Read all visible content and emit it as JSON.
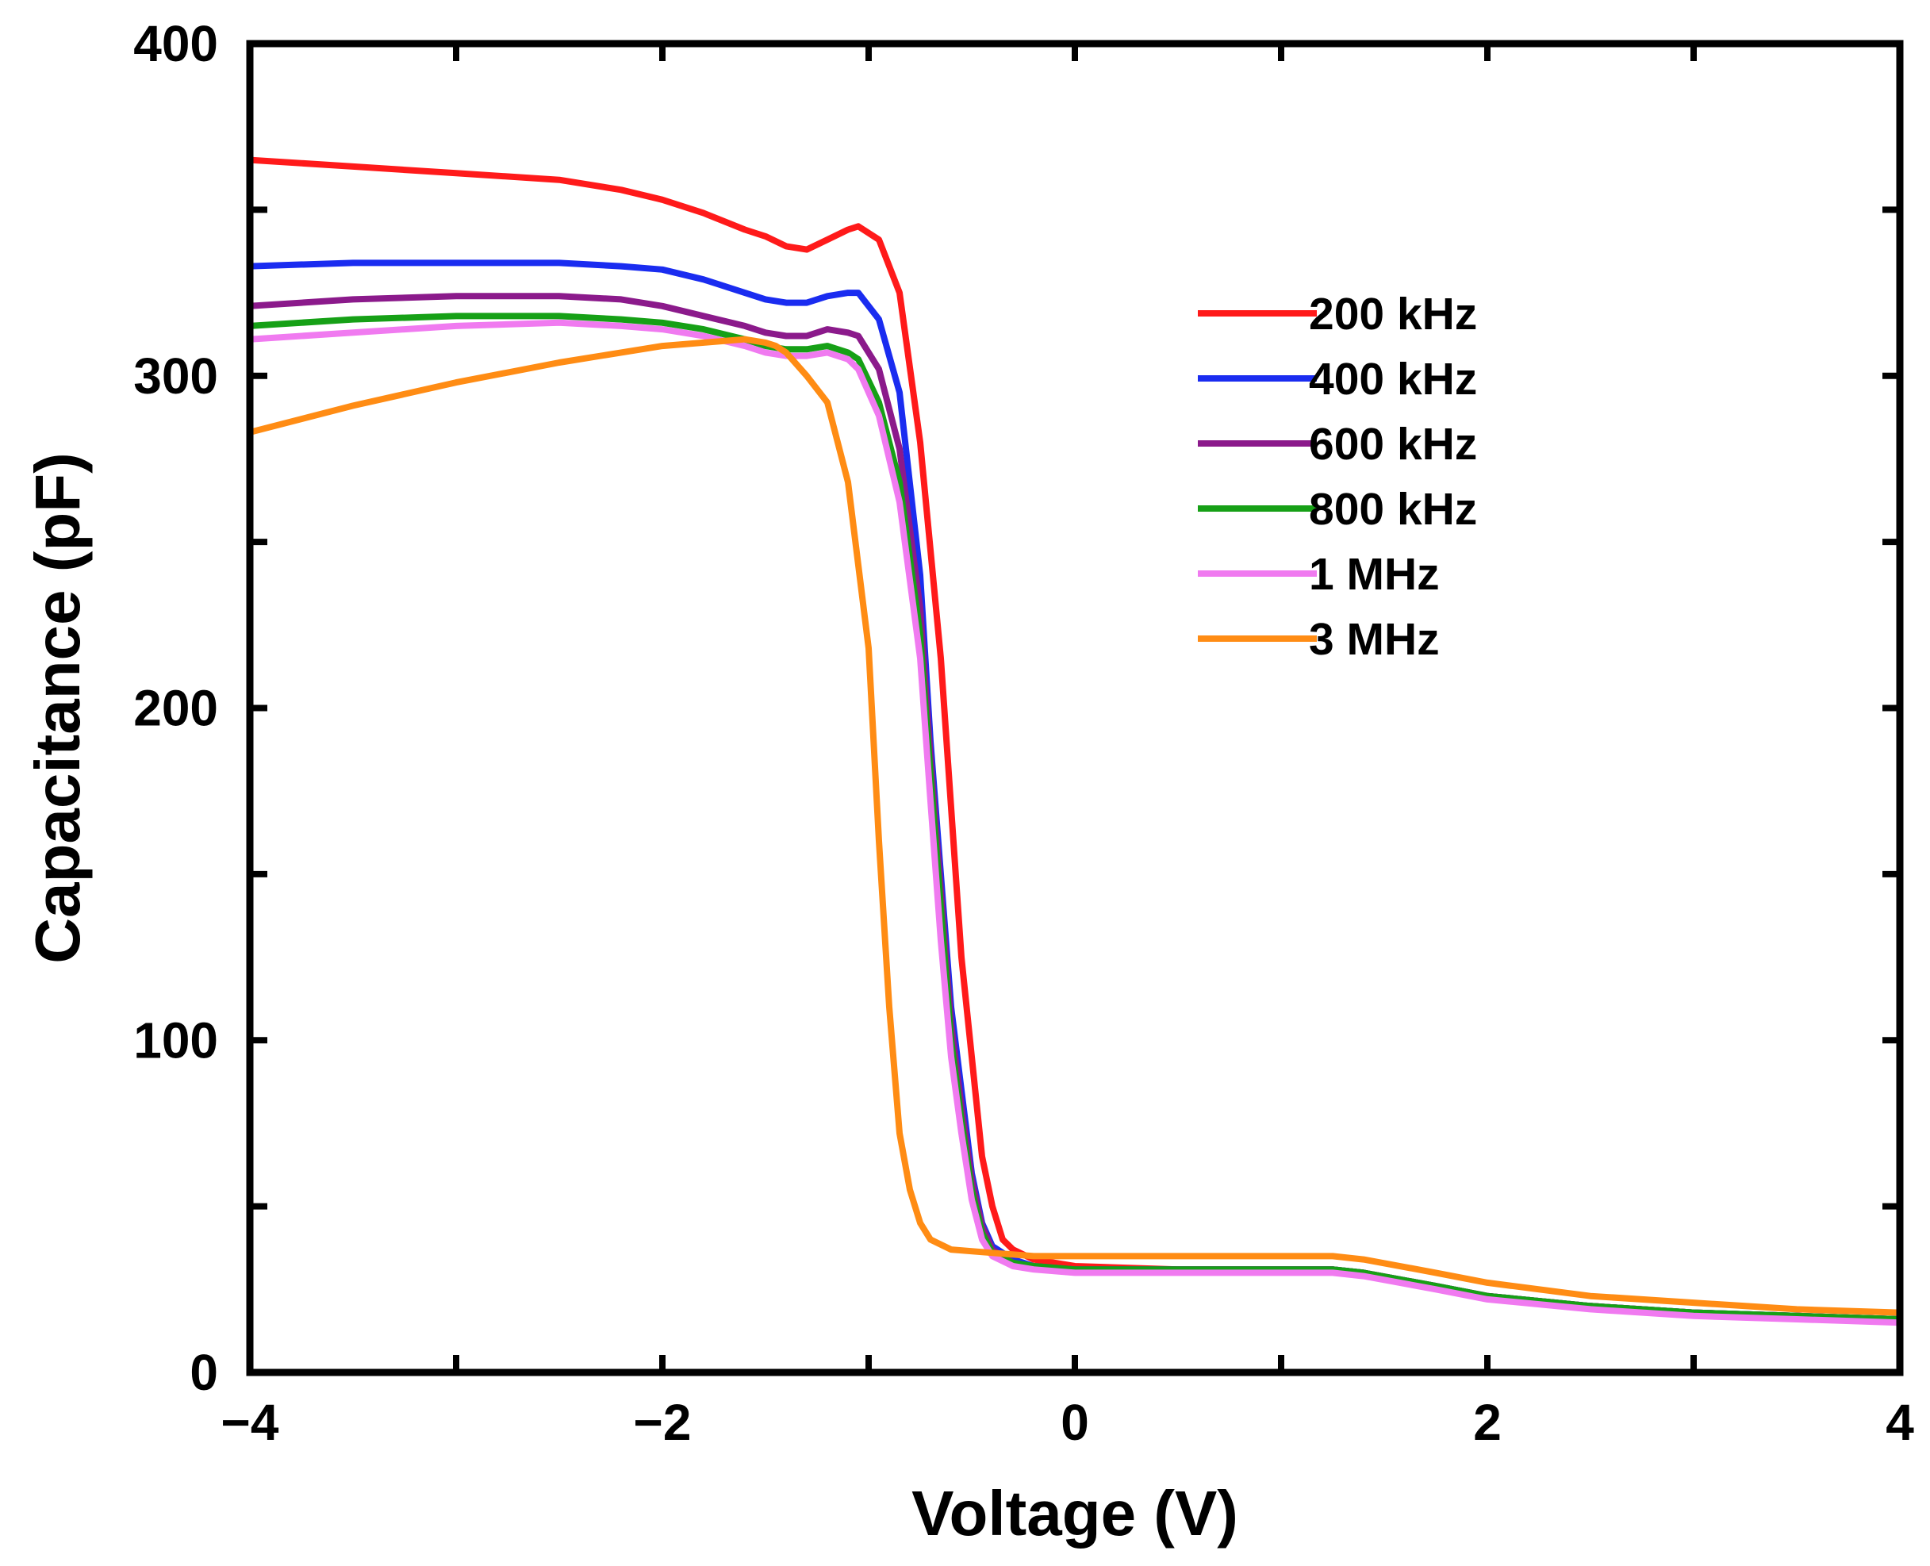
{
  "chart_data": {
    "type": "line",
    "title": "",
    "xlabel": "Voltage (V)",
    "ylabel": "Capacitance (pF)",
    "xlim": [
      -4,
      4
    ],
    "ylim": [
      0,
      400
    ],
    "xticks": [
      -4,
      -2,
      0,
      2,
      4
    ],
    "xtick_labels": [
      "−4",
      "−2",
      "0",
      "2",
      "4"
    ],
    "yticks": [
      0,
      100,
      200,
      300,
      400
    ],
    "ytick_labels": [
      "0",
      "100",
      "200",
      "300",
      "400"
    ],
    "grid": false,
    "legend_position": "upper-right",
    "series": [
      {
        "name": "200 kHz",
        "color": "#ff1a1a",
        "points": [
          [
            -4.0,
            365
          ],
          [
            -3.5,
            363
          ],
          [
            -3.0,
            361
          ],
          [
            -2.5,
            359
          ],
          [
            -2.2,
            356
          ],
          [
            -2.0,
            353
          ],
          [
            -1.8,
            349
          ],
          [
            -1.6,
            344
          ],
          [
            -1.5,
            342
          ],
          [
            -1.4,
            339
          ],
          [
            -1.3,
            338
          ],
          [
            -1.2,
            341
          ],
          [
            -1.1,
            344
          ],
          [
            -1.05,
            345
          ],
          [
            -0.95,
            341
          ],
          [
            -0.85,
            325
          ],
          [
            -0.75,
            280
          ],
          [
            -0.65,
            215
          ],
          [
            -0.6,
            170
          ],
          [
            -0.55,
            125
          ],
          [
            -0.5,
            95
          ],
          [
            -0.45,
            65
          ],
          [
            -0.4,
            50
          ],
          [
            -0.35,
            40
          ],
          [
            -0.3,
            37
          ],
          [
            -0.2,
            34
          ],
          [
            0.0,
            32
          ],
          [
            0.5,
            31
          ],
          [
            1.0,
            31
          ],
          [
            1.25,
            31
          ],
          [
            1.4,
            30
          ],
          [
            1.75,
            26
          ],
          [
            2.0,
            23
          ],
          [
            2.5,
            20
          ],
          [
            3.0,
            18
          ],
          [
            3.5,
            17
          ],
          [
            4.0,
            16
          ]
        ]
      },
      {
        "name": "400 kHz",
        "color": "#1a2cf0",
        "points": [
          [
            -4.0,
            333
          ],
          [
            -3.5,
            334
          ],
          [
            -3.0,
            334
          ],
          [
            -2.5,
            334
          ],
          [
            -2.2,
            333
          ],
          [
            -2.0,
            332
          ],
          [
            -1.8,
            329
          ],
          [
            -1.6,
            325
          ],
          [
            -1.5,
            323
          ],
          [
            -1.4,
            322
          ],
          [
            -1.3,
            322
          ],
          [
            -1.2,
            324
          ],
          [
            -1.1,
            325
          ],
          [
            -1.05,
            325
          ],
          [
            -0.95,
            317
          ],
          [
            -0.85,
            295
          ],
          [
            -0.75,
            240
          ],
          [
            -0.7,
            190
          ],
          [
            -0.65,
            150
          ],
          [
            -0.6,
            110
          ],
          [
            -0.55,
            85
          ],
          [
            -0.5,
            60
          ],
          [
            -0.45,
            45
          ],
          [
            -0.4,
            38
          ],
          [
            -0.3,
            34
          ],
          [
            -0.2,
            32
          ],
          [
            0.0,
            31
          ],
          [
            0.5,
            31
          ],
          [
            1.0,
            31
          ],
          [
            1.25,
            31
          ],
          [
            1.4,
            30
          ],
          [
            1.75,
            26
          ],
          [
            2.0,
            23
          ],
          [
            2.5,
            20
          ],
          [
            3.0,
            18
          ],
          [
            3.5,
            17
          ],
          [
            4.0,
            16
          ]
        ]
      },
      {
        "name": "600 kHz",
        "color": "#8b1a8b",
        "points": [
          [
            -4.0,
            321
          ],
          [
            -3.5,
            323
          ],
          [
            -3.0,
            324
          ],
          [
            -2.5,
            324
          ],
          [
            -2.2,
            323
          ],
          [
            -2.0,
            321
          ],
          [
            -1.8,
            318
          ],
          [
            -1.6,
            315
          ],
          [
            -1.5,
            313
          ],
          [
            -1.4,
            312
          ],
          [
            -1.3,
            312
          ],
          [
            -1.2,
            314
          ],
          [
            -1.1,
            313
          ],
          [
            -1.05,
            312
          ],
          [
            -0.95,
            302
          ],
          [
            -0.85,
            278
          ],
          [
            -0.75,
            230
          ],
          [
            -0.7,
            185
          ],
          [
            -0.65,
            145
          ],
          [
            -0.6,
            105
          ],
          [
            -0.55,
            80
          ],
          [
            -0.5,
            58
          ],
          [
            -0.45,
            44
          ],
          [
            -0.4,
            37
          ],
          [
            -0.3,
            33
          ],
          [
            -0.2,
            32
          ],
          [
            0.0,
            31
          ],
          [
            0.5,
            31
          ],
          [
            1.0,
            31
          ],
          [
            1.25,
            31
          ],
          [
            1.4,
            30
          ],
          [
            1.75,
            26
          ],
          [
            2.0,
            23
          ],
          [
            2.5,
            20
          ],
          [
            3.0,
            18
          ],
          [
            3.5,
            17
          ],
          [
            4.0,
            16
          ]
        ]
      },
      {
        "name": "800 kHz",
        "color": "#16a016",
        "points": [
          [
            -4.0,
            315
          ],
          [
            -3.5,
            317
          ],
          [
            -3.0,
            318
          ],
          [
            -2.5,
            318
          ],
          [
            -2.2,
            317
          ],
          [
            -2.0,
            316
          ],
          [
            -1.8,
            314
          ],
          [
            -1.6,
            311
          ],
          [
            -1.5,
            309
          ],
          [
            -1.4,
            308
          ],
          [
            -1.3,
            308
          ],
          [
            -1.2,
            309
          ],
          [
            -1.1,
            307
          ],
          [
            -1.05,
            305
          ],
          [
            -0.95,
            292
          ],
          [
            -0.85,
            268
          ],
          [
            -0.75,
            222
          ],
          [
            -0.7,
            180
          ],
          [
            -0.65,
            140
          ],
          [
            -0.6,
            100
          ],
          [
            -0.55,
            76
          ],
          [
            -0.5,
            55
          ],
          [
            -0.45,
            42
          ],
          [
            -0.4,
            36
          ],
          [
            -0.3,
            33
          ],
          [
            -0.2,
            32
          ],
          [
            0.0,
            31
          ],
          [
            0.5,
            31
          ],
          [
            1.0,
            31
          ],
          [
            1.25,
            31
          ],
          [
            1.4,
            30
          ],
          [
            1.75,
            26
          ],
          [
            2.0,
            23
          ],
          [
            2.5,
            20
          ],
          [
            3.0,
            18
          ],
          [
            3.5,
            17
          ],
          [
            4.0,
            16
          ]
        ]
      },
      {
        "name": "1 MHz",
        "color": "#f07af0",
        "points": [
          [
            -4.0,
            311
          ],
          [
            -3.5,
            313
          ],
          [
            -3.0,
            315
          ],
          [
            -2.5,
            316
          ],
          [
            -2.2,
            315
          ],
          [
            -2.0,
            314
          ],
          [
            -1.8,
            312
          ],
          [
            -1.6,
            309
          ],
          [
            -1.5,
            307
          ],
          [
            -1.4,
            306
          ],
          [
            -1.3,
            306
          ],
          [
            -1.2,
            307
          ],
          [
            -1.1,
            305
          ],
          [
            -1.05,
            302
          ],
          [
            -0.95,
            288
          ],
          [
            -0.85,
            262
          ],
          [
            -0.75,
            215
          ],
          [
            -0.7,
            172
          ],
          [
            -0.65,
            130
          ],
          [
            -0.6,
            95
          ],
          [
            -0.55,
            72
          ],
          [
            -0.5,
            52
          ],
          [
            -0.45,
            40
          ],
          [
            -0.4,
            35
          ],
          [
            -0.3,
            32
          ],
          [
            -0.2,
            31
          ],
          [
            0.0,
            30
          ],
          [
            0.5,
            30
          ],
          [
            1.0,
            30
          ],
          [
            1.25,
            30
          ],
          [
            1.4,
            29
          ],
          [
            1.75,
            25
          ],
          [
            2.0,
            22
          ],
          [
            2.5,
            19
          ],
          [
            3.0,
            17
          ],
          [
            3.5,
            16
          ],
          [
            4.0,
            15
          ]
        ]
      },
      {
        "name": "3 MHz",
        "color": "#ff8c14",
        "points": [
          [
            -4.0,
            283
          ],
          [
            -3.5,
            291
          ],
          [
            -3.0,
            298
          ],
          [
            -2.5,
            304
          ],
          [
            -2.2,
            307
          ],
          [
            -2.0,
            309
          ],
          [
            -1.8,
            310
          ],
          [
            -1.6,
            311
          ],
          [
            -1.5,
            310
          ],
          [
            -1.45,
            309
          ],
          [
            -1.4,
            307
          ],
          [
            -1.3,
            300
          ],
          [
            -1.2,
            292
          ],
          [
            -1.1,
            268
          ],
          [
            -1.0,
            218
          ],
          [
            -0.95,
            160
          ],
          [
            -0.9,
            110
          ],
          [
            -0.85,
            72
          ],
          [
            -0.8,
            55
          ],
          [
            -0.75,
            45
          ],
          [
            -0.7,
            40
          ],
          [
            -0.6,
            37
          ],
          [
            -0.4,
            36
          ],
          [
            -0.2,
            35
          ],
          [
            0.0,
            35
          ],
          [
            0.5,
            35
          ],
          [
            1.0,
            35
          ],
          [
            1.25,
            35
          ],
          [
            1.4,
            34
          ],
          [
            1.75,
            30
          ],
          [
            2.0,
            27
          ],
          [
            2.5,
            23
          ],
          [
            3.0,
            21
          ],
          [
            3.5,
            19
          ],
          [
            4.0,
            18
          ]
        ]
      }
    ]
  }
}
